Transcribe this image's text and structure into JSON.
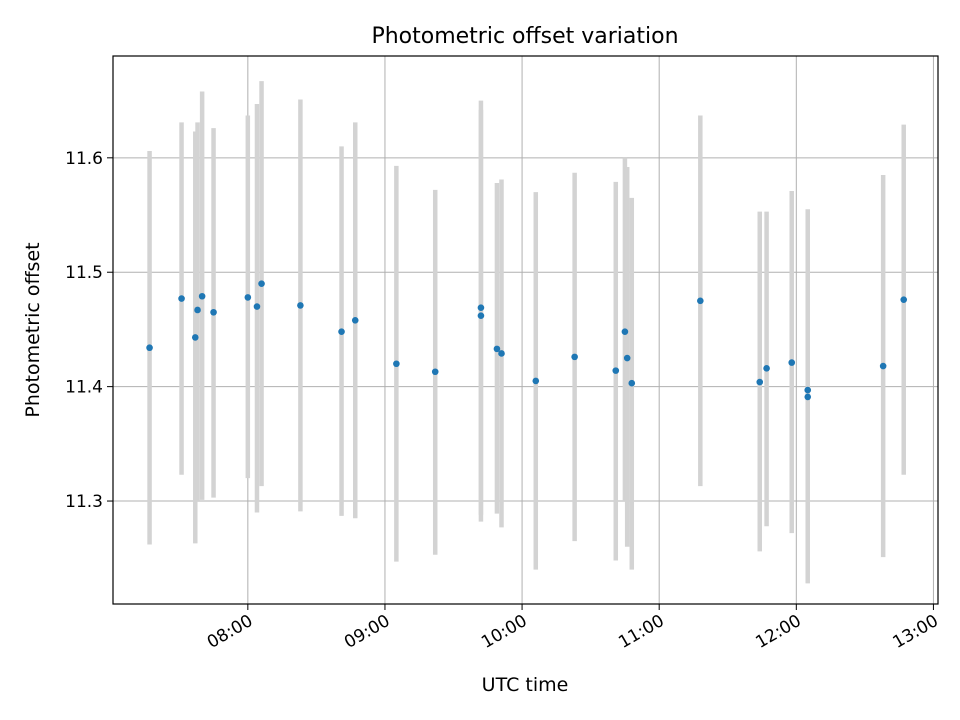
{
  "chart_data": {
    "type": "scatter",
    "title": "Photometric offset variation",
    "xlabel": "UTC time",
    "ylabel": "Photometric offset",
    "xlim": [
      "07:01",
      "13:02"
    ],
    "ylim": [
      11.21,
      11.689
    ],
    "x_ticks": [
      "08:00",
      "09:00",
      "10:00",
      "11:00",
      "12:00",
      "13:00"
    ],
    "y_ticks": [
      11.3,
      11.4,
      11.5,
      11.6
    ],
    "grid": true,
    "legend": "none",
    "point_color": "#1f77b4",
    "errorbar_color": "#d3d3d3",
    "points": [
      {
        "x": "07:17",
        "y": 11.434,
        "low": 11.262,
        "high": 11.606
      },
      {
        "x": "07:31",
        "y": 11.477,
        "low": 11.323,
        "high": 11.631
      },
      {
        "x": "07:37",
        "y": 11.443,
        "low": 11.263,
        "high": 11.623
      },
      {
        "x": "07:38",
        "y": 11.467,
        "low": 11.3,
        "high": 11.631
      },
      {
        "x": "07:40",
        "y": 11.479,
        "low": 11.301,
        "high": 11.658
      },
      {
        "x": "07:45",
        "y": 11.465,
        "low": 11.303,
        "high": 11.626
      },
      {
        "x": "08:00",
        "y": 11.478,
        "low": 11.32,
        "high": 11.637
      },
      {
        "x": "08:04",
        "y": 11.47,
        "low": 11.29,
        "high": 11.647
      },
      {
        "x": "08:06",
        "y": 11.49,
        "low": 11.313,
        "high": 11.667
      },
      {
        "x": "08:23",
        "y": 11.471,
        "low": 11.291,
        "high": 11.651
      },
      {
        "x": "08:41",
        "y": 11.448,
        "low": 11.287,
        "high": 11.61
      },
      {
        "x": "08:47",
        "y": 11.458,
        "low": 11.285,
        "high": 11.631
      },
      {
        "x": "09:05",
        "y": 11.42,
        "low": 11.247,
        "high": 11.593
      },
      {
        "x": "09:22",
        "y": 11.413,
        "low": 11.253,
        "high": 11.572
      },
      {
        "x": "09:42",
        "y": 11.462,
        "low": 11.282,
        "high": 11.642
      },
      {
        "x": "09:42",
        "y": 11.469,
        "low": 11.288,
        "high": 11.65
      },
      {
        "x": "09:49",
        "y": 11.433,
        "low": 11.289,
        "high": 11.578
      },
      {
        "x": "09:51",
        "y": 11.429,
        "low": 11.277,
        "high": 11.581
      },
      {
        "x": "10:06",
        "y": 11.405,
        "low": 11.24,
        "high": 11.57
      },
      {
        "x": "10:23",
        "y": 11.426,
        "low": 11.265,
        "high": 11.587
      },
      {
        "x": "10:41",
        "y": 11.414,
        "low": 11.248,
        "high": 11.579
      },
      {
        "x": "10:45",
        "y": 11.448,
        "low": 11.3,
        "high": 11.6
      },
      {
        "x": "10:46",
        "y": 11.425,
        "low": 11.26,
        "high": 11.592
      },
      {
        "x": "10:48",
        "y": 11.403,
        "low": 11.24,
        "high": 11.565
      },
      {
        "x": "11:18",
        "y": 11.475,
        "low": 11.313,
        "high": 11.637
      },
      {
        "x": "11:44",
        "y": 11.404,
        "low": 11.256,
        "high": 11.553
      },
      {
        "x": "11:47",
        "y": 11.416,
        "low": 11.278,
        "high": 11.553
      },
      {
        "x": "11:58",
        "y": 11.421,
        "low": 11.272,
        "high": 11.571
      },
      {
        "x": "12:05",
        "y": 11.397,
        "low": 11.24,
        "high": 11.555
      },
      {
        "x": "12:05",
        "y": 11.391,
        "low": 11.228,
        "high": 11.554
      },
      {
        "x": "12:38",
        "y": 11.418,
        "low": 11.251,
        "high": 11.585
      },
      {
        "x": "12:47",
        "y": 11.476,
        "low": 11.323,
        "high": 11.629
      }
    ]
  }
}
